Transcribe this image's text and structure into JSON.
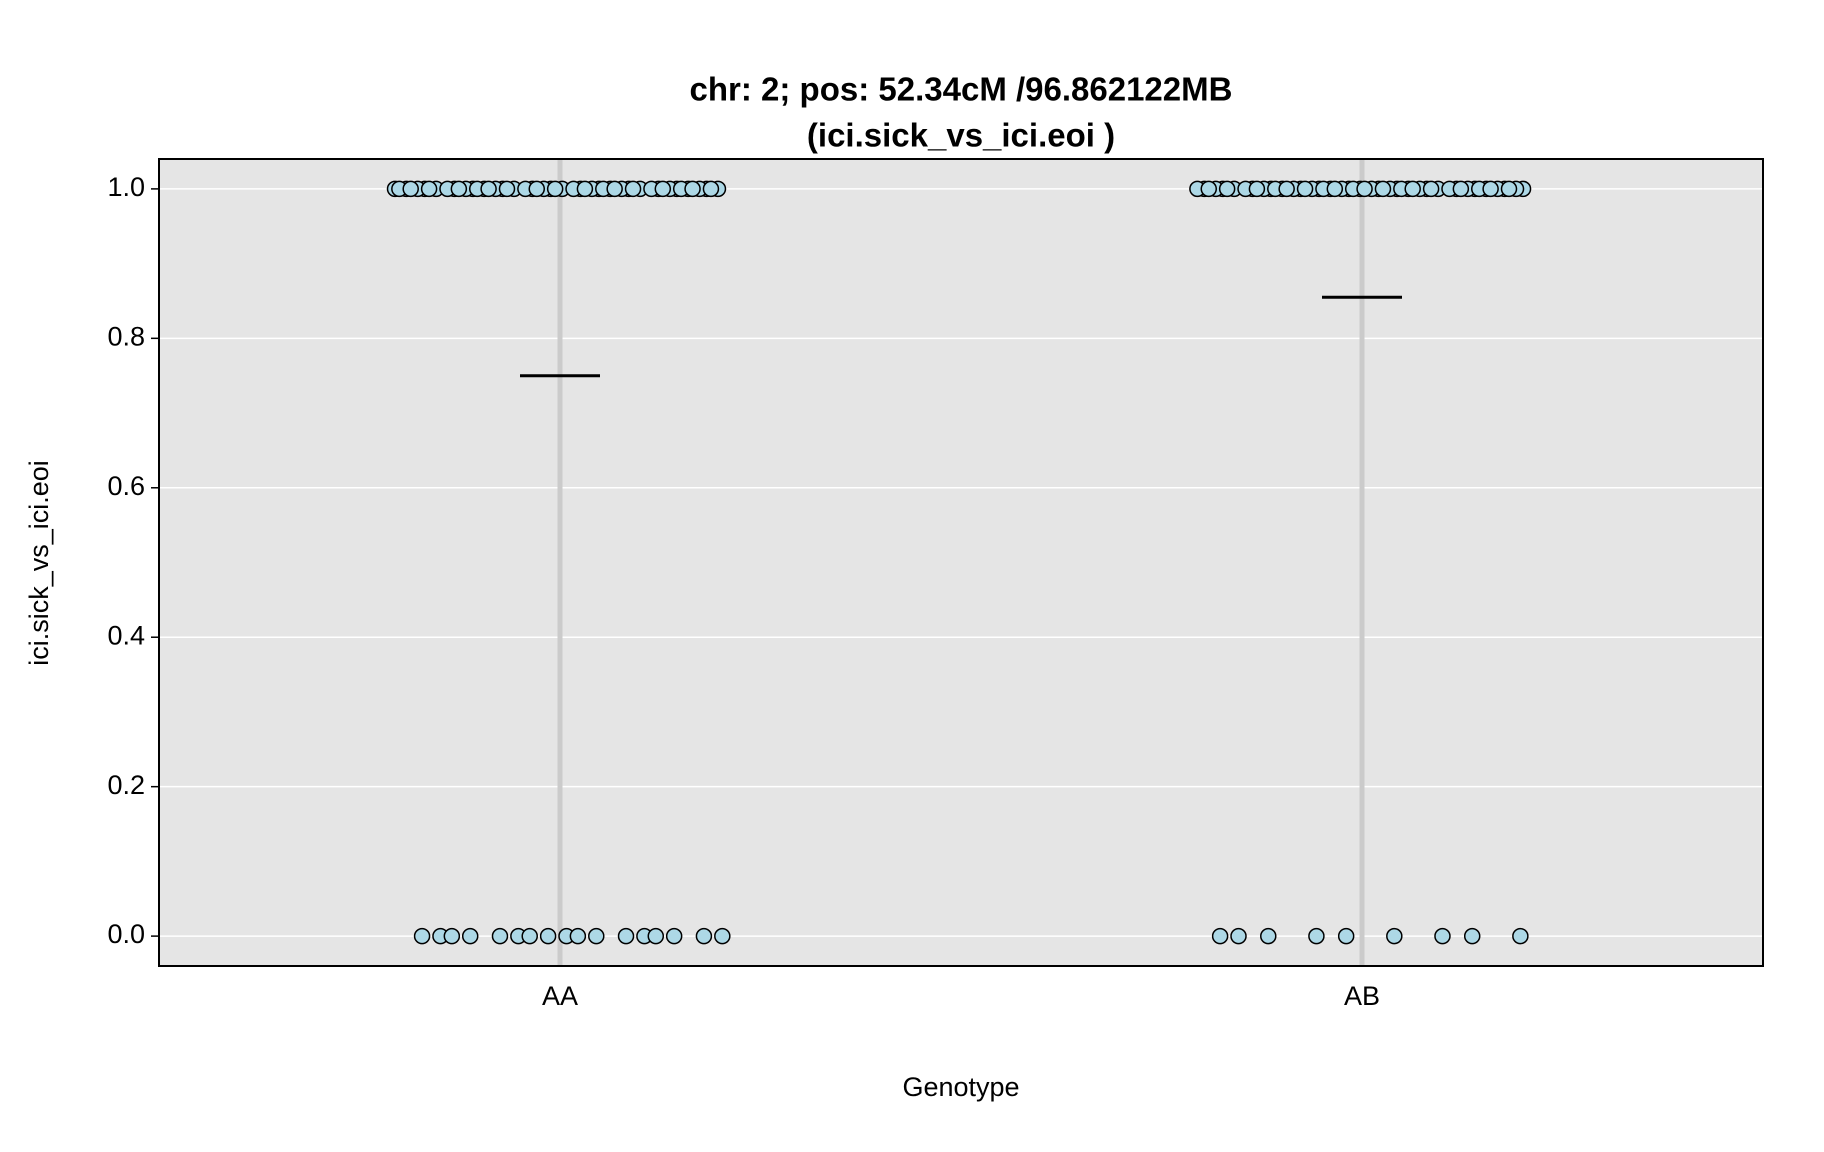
{
  "chart_data": {
    "type": "strip",
    "title": "chr: 2; pos: 52.34cM /96.862122MB",
    "subtitle": "(ici.sick_vs_ici.eoi )",
    "xlabel": "Genotype",
    "ylabel": "ici.sick_vs_ici.eoi",
    "categories": [
      "AA",
      "AB"
    ],
    "values": [
      [
        1,
        1,
        1,
        1,
        1,
        1,
        1,
        1,
        1,
        1,
        1,
        1,
        1,
        1,
        1,
        1,
        1,
        1,
        1,
        1,
        1,
        1,
        1,
        1,
        1,
        1,
        1,
        1,
        1,
        1,
        1,
        1,
        1,
        1,
        1,
        1,
        1,
        1,
        1,
        1,
        1,
        1,
        1,
        1,
        1,
        1,
        1,
        1,
        1,
        1,
        1,
        0,
        0,
        0,
        0,
        0,
        0,
        0,
        0,
        0,
        0,
        0,
        0,
        0,
        0,
        0,
        0,
        0
      ],
      [
        1,
        1,
        1,
        1,
        1,
        1,
        1,
        1,
        1,
        1,
        1,
        1,
        1,
        1,
        1,
        1,
        1,
        1,
        1,
        1,
        1,
        1,
        1,
        1,
        1,
        1,
        1,
        1,
        1,
        1,
        1,
        1,
        1,
        1,
        1,
        1,
        1,
        1,
        1,
        1,
        1,
        1,
        1,
        1,
        1,
        1,
        1,
        1,
        1,
        1,
        1,
        1,
        1,
        0,
        0,
        0,
        0,
        0,
        0,
        0,
        0,
        0
      ]
    ],
    "means": [
      0.75,
      0.855
    ],
    "color": "#add8e6",
    "ylim": [
      -0.04,
      1.04
    ],
    "yticks": [
      {
        "value": 0,
        "label": "0.0"
      },
      0.2,
      0.4,
      0.6,
      0.8,
      {
        "value": 1,
        "label": "1.0"
      }
    ],
    "grid": true
  }
}
